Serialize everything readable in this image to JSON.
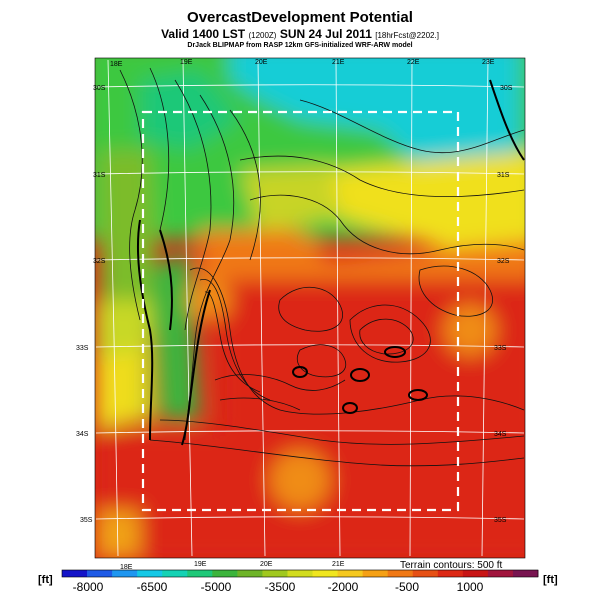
{
  "header": {
    "title": "OvercastDevelopment Potential",
    "valid_line": "Valid 1400 LST",
    "valid_small": "(1200Z)",
    "valid_date": "SUN 24 Jul 2011",
    "forecast_tag": "[18hrFcst@2202.]",
    "credit": "DrJack BLIPMAP from RASP 12km GFS-initialized WRF-ARW model"
  },
  "map": {
    "top_lon_labels": [
      "18E",
      "19E",
      "20E",
      "21E",
      "22E",
      "23E"
    ],
    "bottom_lon_labels": [
      "18E",
      "19E",
      "20E",
      "21E"
    ],
    "left_lat_labels": [
      "30S",
      "31S",
      "32S",
      "33S",
      "34S",
      "35S"
    ],
    "right_lat_labels": [
      "30S",
      "31S",
      "32S",
      "33S",
      "34S",
      "35S"
    ],
    "terrain_note": "Terrain contours: 500 ft"
  },
  "colorbar": {
    "unit_left": "[ft]",
    "unit_right": "[ft]",
    "labels": [
      "-8000",
      "-6500",
      "-5000",
      "-3500",
      "-2000",
      "-500",
      "1000"
    ],
    "colors": [
      "#1414c8",
      "#1e5ae6",
      "#1e96f0",
      "#14c8e6",
      "#14d2b4",
      "#1ec878",
      "#3cb43c",
      "#6eb428",
      "#a0c81e",
      "#d2dc1e",
      "#f0e61e",
      "#f5c81e",
      "#f5a014",
      "#f07814",
      "#e65014",
      "#dc2814",
      "#c81414",
      "#a0143c",
      "#781450"
    ]
  }
}
